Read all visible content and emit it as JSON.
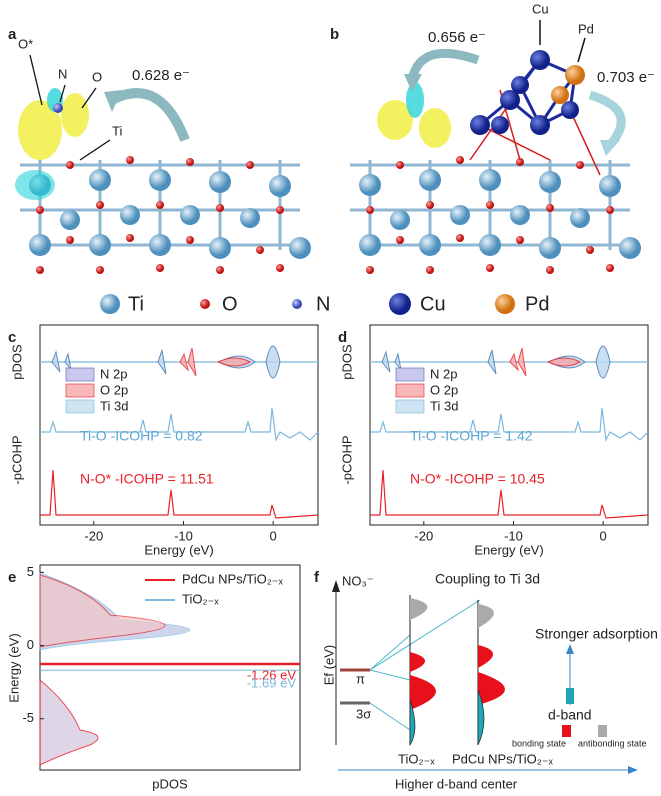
{
  "panels": {
    "a": {
      "label": "a",
      "annotations": [
        "O*",
        "N",
        "O",
        "Ti"
      ],
      "charge": "0.628 e⁻"
    },
    "b": {
      "label": "b",
      "annotations": [
        "Cu",
        "Pd"
      ],
      "charges": [
        "0.656 e⁻",
        "0.703 e⁻"
      ]
    },
    "f": {
      "label": "f",
      "species": "NO₃⁻",
      "title": "Coupling to Ti 3d",
      "y_label": "Ef (eV)",
      "orbitals": [
        "π",
        "3σ"
      ],
      "adsorption": "Stronger adsorption",
      "d_band": "d-band",
      "bonding": "bonding state",
      "antibonding": "antibonding state",
      "catalysts": [
        "TiO₂₋ₓ",
        "PdCu NPs/TiO₂₋ₓ"
      ],
      "trend": "Higher d-band center"
    }
  },
  "legend": [
    "Ti",
    "O",
    "N",
    "Cu",
    "Pd"
  ],
  "chart_data": [
    {
      "type": "dos",
      "label": "c",
      "y_labels": [
        "pDOS",
        "-pCOHP"
      ],
      "x_label": "Energy (eV)",
      "xlim": [
        -26,
        5
      ],
      "xticks": [
        -20,
        -10,
        0
      ],
      "legend": [
        "N 2p",
        "O 2p",
        "Ti 3d"
      ],
      "annotations": [
        "Ti-O  -ICOHP = 0.82",
        "N-O*  -ICOHP = 11.51"
      ]
    },
    {
      "type": "dos",
      "label": "d",
      "y_labels": [
        "pDOS",
        "-pCOHP"
      ],
      "x_label": "Energy (eV)",
      "xlim": [
        -26,
        5
      ],
      "xticks": [
        -20,
        -10,
        0
      ],
      "legend": [
        "N 2p",
        "O 2p",
        "Ti 3d"
      ],
      "annotations": [
        "Ti-O  -ICOHP = 1.42",
        "N-O*  -ICOHP = 10.45"
      ]
    },
    {
      "type": "dos-h",
      "label": "e",
      "y_label": "Energy (eV)",
      "x_label": "pDOS",
      "ylim": [
        -8.5,
        5.5
      ],
      "yticks": [
        5,
        0,
        -5
      ],
      "series": [
        {
          "name": "PdCu NPs/TiO₂₋ₓ",
          "color": "#e8202a"
        },
        {
          "name": "TiO₂₋ₓ",
          "color": "#7ab8dc"
        }
      ],
      "levels": [
        {
          "value": -1.26,
          "label": "-1.26 eV",
          "color": "#e8202a"
        },
        {
          "value": -1.69,
          "label": "-1.69 eV",
          "color": "#7ab8dc"
        }
      ]
    }
  ]
}
